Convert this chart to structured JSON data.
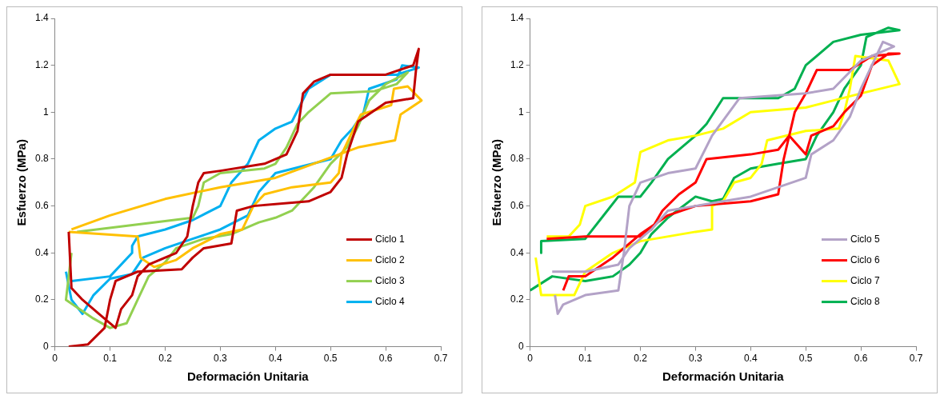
{
  "chart_data": [
    {
      "type": "line",
      "xlabel": "Deformación Unitaria",
      "ylabel": "Esfuerzo (MPa)",
      "xlim": [
        0,
        0.7
      ],
      "xticks": [
        0,
        0.1,
        0.2,
        0.3,
        0.4,
        0.5,
        0.6,
        0.7
      ],
      "ylim": [
        0,
        1.4
      ],
      "yticks": [
        0,
        0.2,
        0.4,
        0.6,
        0.8,
        1,
        1.2,
        1.4
      ],
      "grid": false,
      "legend": "bottom right",
      "marker": "none",
      "line_style": "solid",
      "series": [
        {
          "name": "Ciclo 1",
          "color": "#c00000",
          "x": [
            0.025,
            0.06,
            0.09,
            0.1,
            0.11,
            0.15,
            0.23,
            0.25,
            0.27,
            0.32,
            0.33,
            0.36,
            0.46,
            0.5,
            0.52,
            0.53,
            0.55,
            0.6,
            0.65,
            0.655,
            0.66,
            0.65,
            0.6,
            0.5,
            0.47,
            0.45,
            0.44,
            0.42,
            0.38,
            0.3,
            0.27,
            0.26,
            0.25,
            0.24,
            0.22,
            0.2,
            0.17,
            0.15,
            0.14,
            0.12,
            0.11,
            0.08,
            0.05,
            0.03,
            0.025
          ],
          "values": [
            0,
            0.01,
            0.08,
            0.2,
            0.28,
            0.32,
            0.33,
            0.38,
            0.42,
            0.44,
            0.58,
            0.6,
            0.62,
            0.66,
            0.72,
            0.82,
            0.96,
            1.04,
            1.06,
            1.18,
            1.27,
            1.2,
            1.16,
            1.16,
            1.13,
            1.08,
            0.92,
            0.82,
            0.78,
            0.75,
            0.74,
            0.7,
            0.6,
            0.47,
            0.4,
            0.38,
            0.35,
            0.3,
            0.22,
            0.16,
            0.08,
            0.14,
            0.2,
            0.25,
            0.49
          ]
        },
        {
          "name": "Ciclo 2",
          "color": "#ffc000",
          "x": [
            0.025,
            0.15,
            0.155,
            0.18,
            0.22,
            0.25,
            0.3,
            0.34,
            0.36,
            0.38,
            0.43,
            0.5,
            0.515,
            0.52,
            0.54,
            0.555,
            0.61,
            0.615,
            0.64,
            0.665,
            0.627,
            0.617,
            0.55,
            0.4,
            0.3,
            0.2,
            0.1,
            0.03
          ],
          "values": [
            0.49,
            0.47,
            0.38,
            0.34,
            0.37,
            0.42,
            0.48,
            0.5,
            0.6,
            0.65,
            0.68,
            0.7,
            0.74,
            0.82,
            0.92,
            0.99,
            1.03,
            1.1,
            1.11,
            1.05,
            0.99,
            0.88,
            0.85,
            0.72,
            0.68,
            0.63,
            0.56,
            0.5
          ]
        },
        {
          "name": "Ciclo 3",
          "color": "#92d050",
          "x": [
            0.04,
            0.25,
            0.26,
            0.27,
            0.3,
            0.38,
            0.4,
            0.42,
            0.44,
            0.46,
            0.5,
            0.58,
            0.62,
            0.64,
            0.6,
            0.57,
            0.55,
            0.53,
            0.5,
            0.47,
            0.43,
            0.4,
            0.37,
            0.32,
            0.27,
            0.22,
            0.2,
            0.17,
            0.15,
            0.13,
            0.1,
            0.07,
            0.02,
            0.03
          ],
          "values": [
            0.49,
            0.55,
            0.6,
            0.7,
            0.74,
            0.76,
            0.78,
            0.85,
            0.95,
            1.0,
            1.08,
            1.09,
            1.12,
            1.17,
            1.12,
            1.05,
            0.94,
            0.85,
            0.78,
            0.68,
            0.58,
            0.55,
            0.53,
            0.48,
            0.46,
            0.42,
            0.36,
            0.3,
            0.2,
            0.1,
            0.08,
            0.12,
            0.2,
            0.4
          ]
        },
        {
          "name": "Ciclo 4",
          "color": "#00b0f0",
          "x": [
            0.02,
            0.03,
            0.05,
            0.07,
            0.1,
            0.14,
            0.16,
            0.2,
            0.25,
            0.3,
            0.35,
            0.37,
            0.4,
            0.45,
            0.5,
            0.52,
            0.54,
            0.56,
            0.57,
            0.62,
            0.63,
            0.66,
            0.62,
            0.5,
            0.46,
            0.43,
            0.4,
            0.37,
            0.35,
            0.32,
            0.3,
            0.25,
            0.2,
            0.15,
            0.14,
            0.14,
            0.1,
            0.03
          ],
          "values": [
            0.32,
            0.2,
            0.14,
            0.22,
            0.29,
            0.31,
            0.38,
            0.42,
            0.46,
            0.5,
            0.56,
            0.66,
            0.74,
            0.77,
            0.8,
            0.88,
            0.93,
            1.0,
            1.1,
            1.14,
            1.2,
            1.19,
            1.16,
            1.16,
            1.1,
            0.96,
            0.93,
            0.88,
            0.78,
            0.7,
            0.6,
            0.54,
            0.5,
            0.47,
            0.43,
            0.4,
            0.3,
            0.28
          ]
        }
      ]
    },
    {
      "type": "line",
      "xlabel": "Deformación Unitaria",
      "ylabel": "Esfuerzo (MPa)",
      "xlim": [
        0,
        0.7
      ],
      "xticks": [
        0,
        0.1,
        0.2,
        0.3,
        0.4,
        0.5,
        0.6,
        0.7
      ],
      "ylim": [
        0,
        1.4
      ],
      "yticks": [
        0,
        0.2,
        0.4,
        0.6,
        0.8,
        1,
        1.2,
        1.4
      ],
      "grid": false,
      "legend": "bottom right",
      "marker": "none",
      "line_style": "solid",
      "series": [
        {
          "name": "Ciclo 5",
          "color": "#b3a2c7",
          "x": [
            0.04,
            0.1,
            0.16,
            0.18,
            0.22,
            0.25,
            0.3,
            0.35,
            0.4,
            0.5,
            0.51,
            0.55,
            0.58,
            0.6,
            0.62,
            0.64,
            0.66,
            0.6,
            0.55,
            0.5,
            0.38,
            0.33,
            0.3,
            0.25,
            0.2,
            0.18,
            0.17,
            0.16,
            0.1,
            0.06,
            0.05,
            0.045
          ],
          "values": [
            0.32,
            0.32,
            0.35,
            0.42,
            0.5,
            0.58,
            0.6,
            0.62,
            0.64,
            0.72,
            0.82,
            0.88,
            0.98,
            1.1,
            1.2,
            1.3,
            1.28,
            1.22,
            1.1,
            1.08,
            1.06,
            0.9,
            0.76,
            0.74,
            0.7,
            0.6,
            0.4,
            0.24,
            0.22,
            0.18,
            0.14,
            0.22
          ]
        },
        {
          "name": "Ciclo 6",
          "color": "#ff0000",
          "x": [
            0.03,
            0.1,
            0.2,
            0.22,
            0.24,
            0.27,
            0.3,
            0.32,
            0.4,
            0.45,
            0.47,
            0.5,
            0.51,
            0.55,
            0.57,
            0.6,
            0.62,
            0.65,
            0.67,
            0.62,
            0.58,
            0.52,
            0.5,
            0.48,
            0.46,
            0.45,
            0.4,
            0.3,
            0.25,
            0.2,
            0.15,
            0.1,
            0.07,
            0.06
          ],
          "values": [
            0.46,
            0.47,
            0.47,
            0.5,
            0.58,
            0.65,
            0.7,
            0.8,
            0.82,
            0.84,
            0.9,
            0.82,
            0.9,
            0.94,
            1.0,
            1.07,
            1.2,
            1.25,
            1.25,
            1.24,
            1.18,
            1.18,
            1.08,
            1.0,
            0.8,
            0.65,
            0.62,
            0.6,
            0.56,
            0.48,
            0.38,
            0.3,
            0.3,
            0.24
          ]
        },
        {
          "name": "Ciclo 7",
          "color": "#ffff00",
          "x": [
            0.01,
            0.015,
            0.02,
            0.08,
            0.1,
            0.15,
            0.2,
            0.3,
            0.33,
            0.33,
            0.35,
            0.37,
            0.4,
            0.42,
            0.43,
            0.5,
            0.56,
            0.57,
            0.58,
            0.59,
            0.65,
            0.67,
            0.6,
            0.5,
            0.4,
            0.35,
            0.3,
            0.25,
            0.2,
            0.19,
            0.15,
            0.1,
            0.09,
            0.07,
            0.03
          ],
          "values": [
            0.38,
            0.3,
            0.22,
            0.22,
            0.32,
            0.4,
            0.45,
            0.49,
            0.5,
            0.6,
            0.62,
            0.7,
            0.72,
            0.78,
            0.88,
            0.92,
            0.93,
            1.0,
            1.1,
            1.24,
            1.22,
            1.12,
            1.08,
            1.02,
            1.0,
            0.93,
            0.9,
            0.88,
            0.83,
            0.7,
            0.64,
            0.6,
            0.52,
            0.47,
            0.47
          ]
        },
        {
          "name": "Ciclo 8",
          "color": "#00b050",
          "x": [
            0,
            0.04,
            0.1,
            0.15,
            0.18,
            0.2,
            0.22,
            0.25,
            0.3,
            0.33,
            0.35,
            0.37,
            0.4,
            0.45,
            0.5,
            0.52,
            0.55,
            0.57,
            0.6,
            0.61,
            0.65,
            0.67,
            0.6,
            0.55,
            0.5,
            0.48,
            0.45,
            0.35,
            0.32,
            0.3,
            0.25,
            0.22,
            0.2,
            0.16,
            0.1,
            0.02,
            0.02
          ],
          "values": [
            0.24,
            0.3,
            0.28,
            0.3,
            0.35,
            0.4,
            0.48,
            0.55,
            0.64,
            0.62,
            0.63,
            0.72,
            0.76,
            0.78,
            0.8,
            0.9,
            1.0,
            1.1,
            1.2,
            1.32,
            1.36,
            1.35,
            1.33,
            1.3,
            1.2,
            1.1,
            1.06,
            1.06,
            0.95,
            0.9,
            0.8,
            0.7,
            0.64,
            0.64,
            0.46,
            0.45,
            0.4
          ]
        }
      ]
    }
  ]
}
